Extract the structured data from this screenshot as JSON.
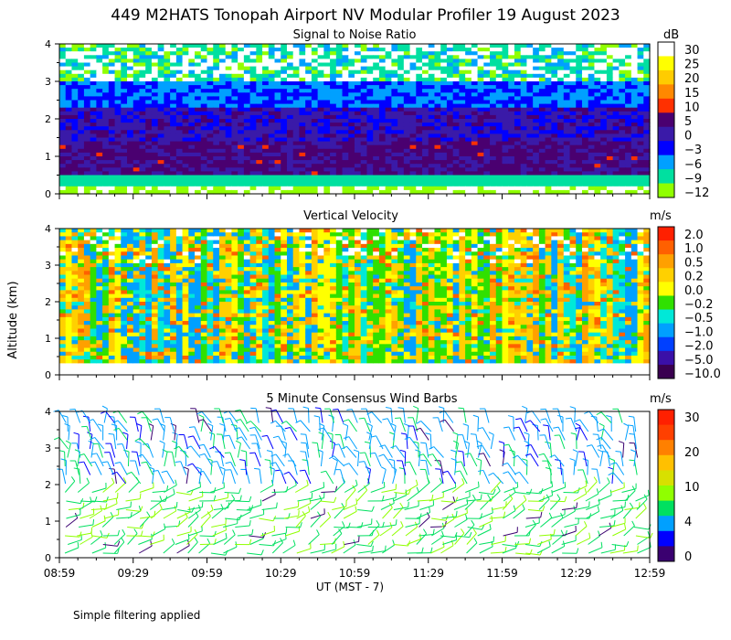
{
  "title": "449 M2HATS Tonopah Airport NV Modular Profiler 19 August 2023",
  "ylabel": "Altitude (km)",
  "xlabel": "UT  (MST - 7)",
  "footer": "Simple filtering applied",
  "x_ticks": [
    "08:59",
    "09:29",
    "09:59",
    "10:29",
    "10:59",
    "11:29",
    "11:59",
    "12:29",
    "12:59"
  ],
  "chart_data": [
    {
      "type": "heatmap",
      "title": "Signal to Noise Ratio",
      "unit": "dB",
      "ylim": [
        0,
        4
      ],
      "y_ticks": [
        "0",
        "1",
        "2",
        "3",
        "4"
      ],
      "colorbar": {
        "labels": [
          "30",
          "25",
          "20",
          "15",
          "10",
          "5",
          "0",
          "−3",
          "−6",
          "−9",
          "−12"
        ],
        "colors": [
          "#ffffff",
          "#ffff00",
          "#ffcc00",
          "#ff8800",
          "#ff3000",
          "#4a0070",
          "#3a1aa8",
          "#0000ff",
          "#00a0ff",
          "#00e0a0",
          "#90ff00"
        ]
      }
    },
    {
      "type": "heatmap",
      "title": "Vertical Velocity",
      "unit": "m/s",
      "ylim": [
        0,
        4
      ],
      "y_ticks": [
        "0",
        "1",
        "2",
        "3",
        "4"
      ],
      "colorbar": {
        "labels": [
          "2.0",
          "1.0",
          "0.5",
          "0.2",
          "0.0",
          "−0.2",
          "−0.5",
          "−1.0",
          "−2.0",
          "−5.0",
          "−10.0"
        ],
        "colors": [
          "#ff2000",
          "#ff6000",
          "#ffa000",
          "#ffd000",
          "#ffff00",
          "#30e000",
          "#00e8d8",
          "#00a0ff",
          "#0040ff",
          "#3a10a8",
          "#3a0050"
        ]
      }
    },
    {
      "type": "scatter",
      "title": "5 Minute Consensus Wind Barbs",
      "unit": "m/s",
      "ylim": [
        0,
        4
      ],
      "y_ticks": [
        "0",
        "1",
        "2",
        "3",
        "4"
      ],
      "colorbar": {
        "labels": [
          "30",
          "20",
          "10",
          "4",
          "0"
        ],
        "colors": [
          "#ff2000",
          "#ff4000",
          "#ff8000",
          "#ffc000",
          "#d8e000",
          "#90ff00",
          "#00e060",
          "#00a0ff",
          "#0000ff",
          "#3a0070"
        ]
      }
    }
  ]
}
